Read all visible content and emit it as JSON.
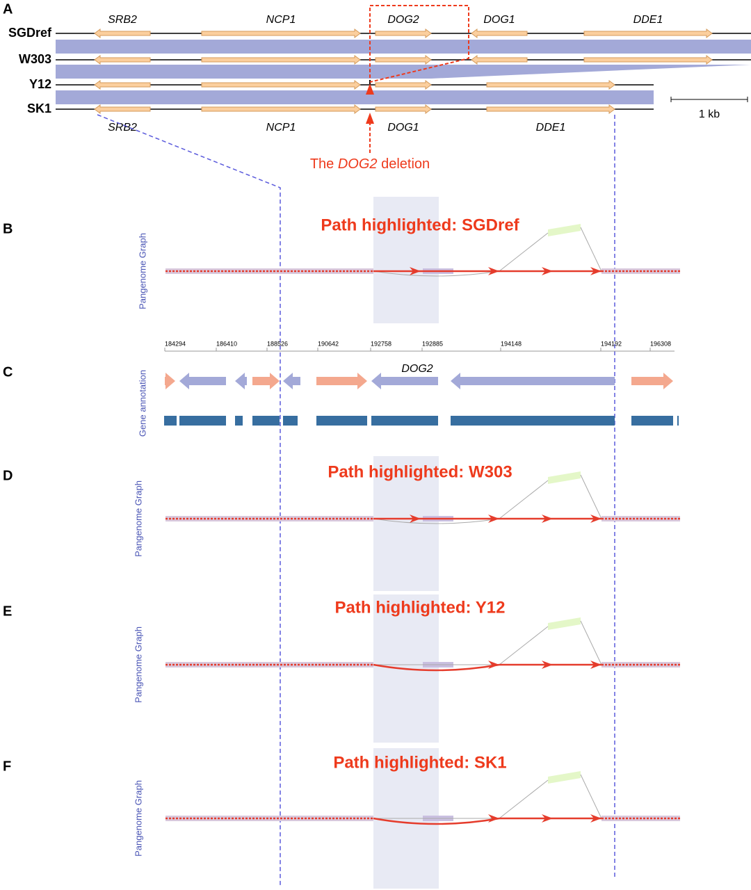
{
  "panel_a": {
    "label": "A",
    "strains": [
      "SGDref",
      "W303",
      "Y12",
      "SK1"
    ],
    "top_genes": [
      "SRB2",
      "NCP1",
      "DOG2",
      "DOG1",
      "DDE1"
    ],
    "bottom_genes": [
      "SRB2",
      "NCP1",
      "DOG1",
      "DDE1"
    ],
    "scale": "1 kb",
    "annotation": {
      "before": "The",
      "gene": "DOG2",
      "after": "deletion"
    }
  },
  "panel_c": {
    "label": "C",
    "side_label": "Gene annotation",
    "ruler": [
      184294,
      186410,
      188526,
      190642,
      192758,
      192885,
      194148,
      194192,
      196308
    ],
    "gene_label": "DOG2"
  },
  "graph_panels": [
    {
      "label": "B",
      "side_label": "Pangenome Graph",
      "title": "Path highlighted: SGDref"
    },
    {
      "label": "D",
      "side_label": "Pangenome Graph",
      "title": "Path highlighted: W303"
    },
    {
      "label": "E",
      "side_label": "Pangenome Graph",
      "title": "Path highlighted: Y12"
    },
    {
      "label": "F",
      "side_label": "Pangenome Graph",
      "title": "Path highlighted: SK1"
    }
  ]
}
